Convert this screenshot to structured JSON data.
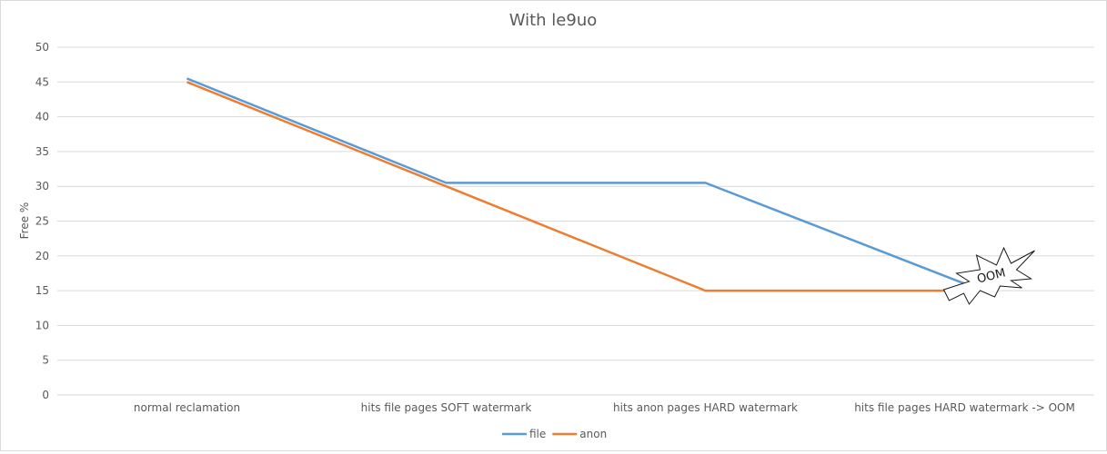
{
  "chart_data": {
    "type": "line",
    "title": "With le9uo",
    "xlabel": "",
    "ylabel": "Free %",
    "ylim": [
      0,
      50
    ],
    "yticks": [
      0,
      5,
      10,
      15,
      20,
      25,
      30,
      35,
      40,
      45,
      50
    ],
    "categories": [
      "normal reclamation",
      "hits file pages SOFT watermark",
      "hits anon pages HARD watermark",
      "hits file pages HARD watermark -> OOM"
    ],
    "series": [
      {
        "name": "file",
        "color": "#5b9bd5",
        "values": [
          45.5,
          30.5,
          30.5,
          16
        ]
      },
      {
        "name": "anon",
        "color": "#ed7d31",
        "values": [
          45,
          30,
          15,
          15
        ]
      }
    ],
    "grid": true,
    "legend": "bottom",
    "annotations": [
      {
        "text": "OOM",
        "shape": "explosion-burst",
        "category_index": 3
      }
    ]
  }
}
